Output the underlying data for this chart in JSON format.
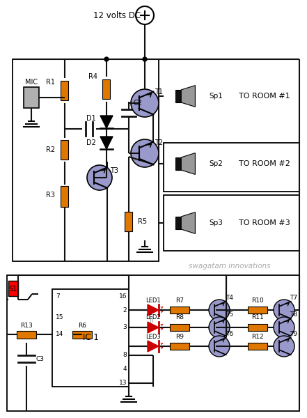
{
  "bg": "#ffffff",
  "lc": "#111111",
  "rc": "#e07800",
  "tc": "#9999cc",
  "ledc": "#cc0000",
  "title": "12 volts DC",
  "watermark": "swagatam innovations",
  "rooms": [
    "TO ROOM #1",
    "TO ROOM #2",
    "TO ROOM #3"
  ],
  "sp_labels": [
    "Sp1",
    "Sp2",
    "Sp3"
  ],
  "fig_w": 4.41,
  "fig_h": 6.0
}
